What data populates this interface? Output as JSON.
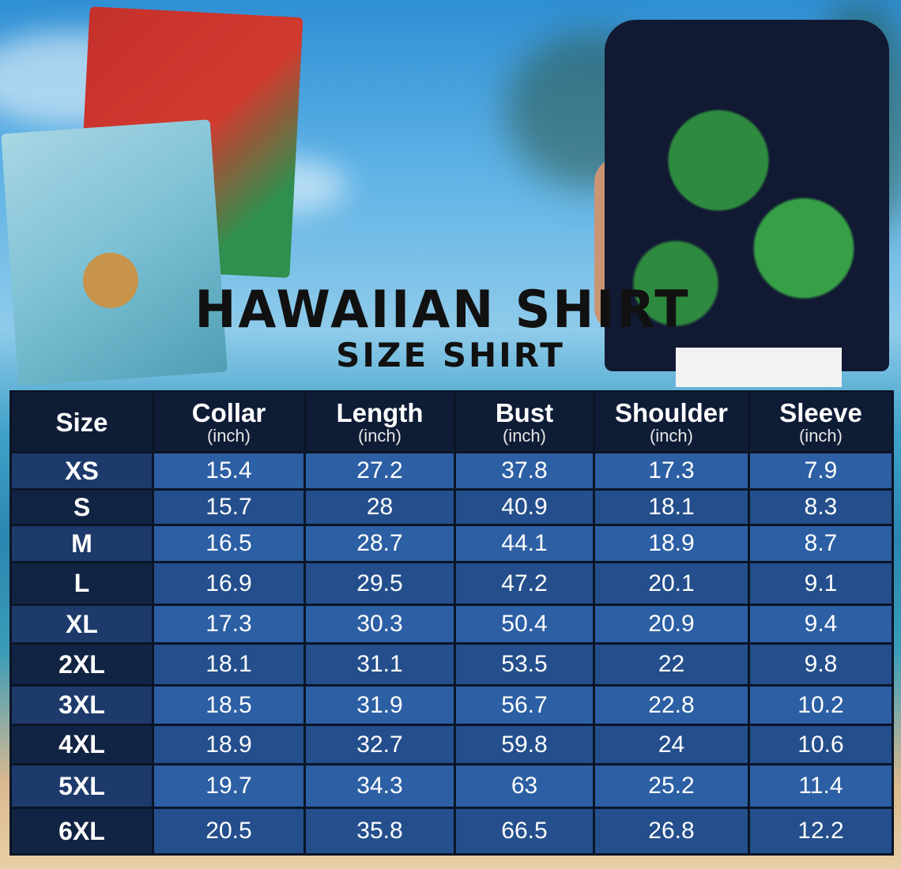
{
  "title": "HAWAIIAN SHIRT",
  "subtitle": "SIZE SHIRT",
  "colors": {
    "header": "#0f1c36",
    "row_light": "#2c5fa4",
    "row_dark": "#244f8c",
    "size_col": "#122443"
  },
  "table": {
    "headers": [
      {
        "label": "Size",
        "unit": ""
      },
      {
        "label": "Collar",
        "unit": "(inch)"
      },
      {
        "label": "Length",
        "unit": "(inch)"
      },
      {
        "label": "Bust",
        "unit": "(inch)"
      },
      {
        "label": "Shoulder",
        "unit": "(inch)"
      },
      {
        "label": "Sleeve",
        "unit": "(inch)"
      }
    ],
    "rows": [
      [
        "XS",
        "15.4",
        "27.2",
        "37.8",
        "17.3",
        "7.9"
      ],
      [
        "S",
        "15.7",
        "28",
        "40.9",
        "18.1",
        "8.3"
      ],
      [
        "M",
        "16.5",
        "28.7",
        "44.1",
        "18.9",
        "8.7"
      ],
      [
        "L",
        "16.9",
        "29.5",
        "47.2",
        "20.1",
        "9.1"
      ],
      [
        "XL",
        "17.3",
        "30.3",
        "50.4",
        "20.9",
        "9.4"
      ],
      [
        "2XL",
        "18.1",
        "31.1",
        "53.5",
        "22",
        "9.8"
      ],
      [
        "3XL",
        "18.5",
        "31.9",
        "56.7",
        "22.8",
        "10.2"
      ],
      [
        "4XL",
        "18.9",
        "32.7",
        "59.8",
        "24",
        "10.6"
      ],
      [
        "5XL",
        "19.7",
        "34.3",
        "63",
        "25.2",
        "11.4"
      ],
      [
        "6XL",
        "20.5",
        "35.8",
        "66.5",
        "26.8",
        "12.2"
      ]
    ]
  }
}
